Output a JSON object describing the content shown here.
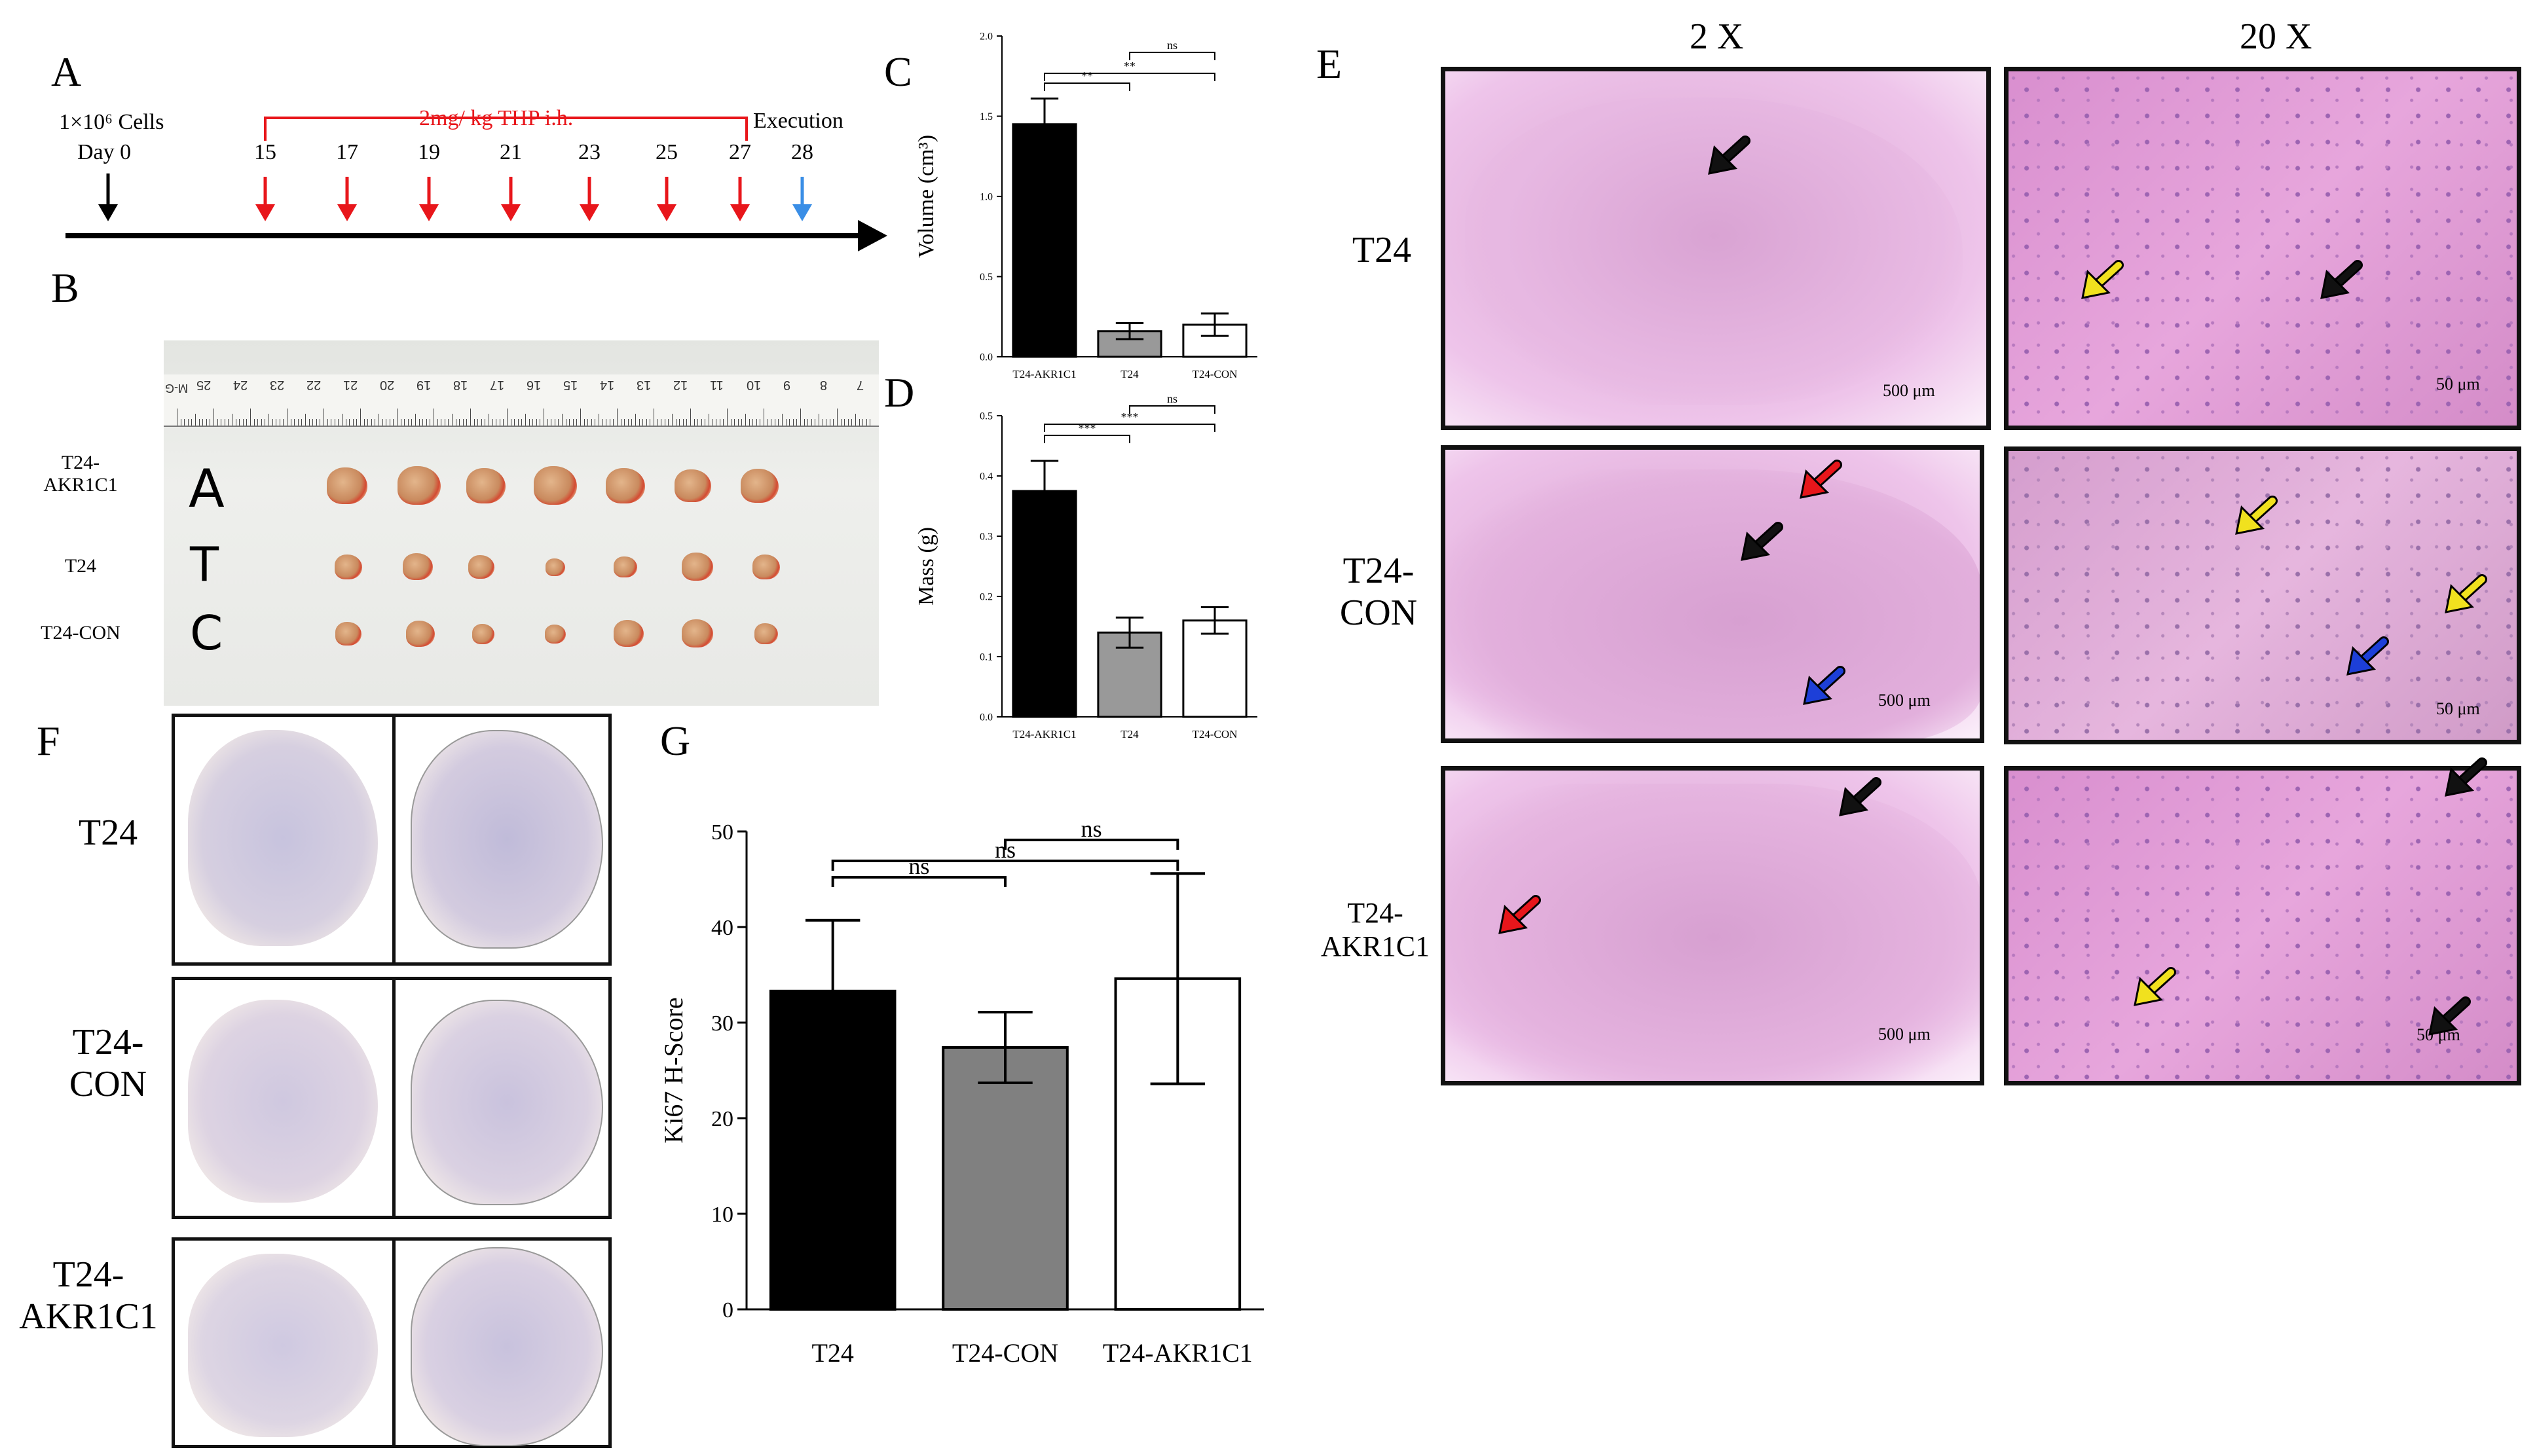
{
  "panel_letters": {
    "A": "A",
    "B": "B",
    "C": "C",
    "D": "D",
    "E": "E",
    "F": "F",
    "G": "G"
  },
  "timeline": {
    "cells_label": "1×10⁶ Cells",
    "day0_label": "Day 0",
    "treatment_label": "2mg/ kg THP i.h.",
    "execution_label": "Execution",
    "days": [
      "15",
      "17",
      "19",
      "21",
      "23",
      "25",
      "27",
      "28"
    ],
    "colors": {
      "start": "#000000",
      "treatment": "#e8161b",
      "execution": "#3a8ee6"
    }
  },
  "photo": {
    "row_labels": [
      "T24-\nAKR1C1",
      "T24",
      "T24-CON"
    ],
    "handwritten": [
      "A",
      "T",
      "C"
    ],
    "ruler_numbers": [
      "25",
      "24",
      "23",
      "22",
      "21",
      "20",
      "19",
      "18",
      "17",
      "16",
      "15",
      "14",
      "13",
      "12",
      "11",
      "10",
      "9",
      "8",
      "7"
    ],
    "ruler_mark": "M-G"
  },
  "he": {
    "col_labels": [
      "2 X",
      "20 X"
    ],
    "row_labels": [
      "T24",
      "T24-\nCON",
      "T24-\nAKR1C1"
    ],
    "scale_low": "500 μm",
    "scale_high": "50 μm",
    "arrow_colors": {
      "black": "#111111",
      "red": "#e8161b",
      "blue": "#1d3fd8",
      "yellow": "#f1e11e"
    }
  },
  "ihc": {
    "row_labels": [
      "T24",
      "T24-\nCON",
      "T24-\nAKR1C1"
    ]
  },
  "chart_data": [
    {
      "panel": "C",
      "type": "bar",
      "categories": [
        "T24-AKR1C1",
        "T24",
        "T24-CON"
      ],
      "values": [
        1.45,
        0.16,
        0.2
      ],
      "errors": [
        0.16,
        0.05,
        0.07
      ],
      "ylabel": "Volume (cm³)",
      "ylim": [
        0,
        2.0
      ],
      "yticks": [
        "0.0",
        "0.5",
        "1.0",
        "1.5",
        "2.0"
      ],
      "colors": [
        "#000000",
        "#999999",
        "#ffffff"
      ],
      "significance": [
        {
          "pair": [
            0,
            1
          ],
          "label": "**"
        },
        {
          "pair": [
            0,
            2
          ],
          "label": "**"
        },
        {
          "pair": [
            1,
            2
          ],
          "label": "ns"
        }
      ]
    },
    {
      "panel": "D",
      "type": "bar",
      "categories": [
        "T24-AKR1C1",
        "T24",
        "T24-CON"
      ],
      "values": [
        0.375,
        0.14,
        0.16
      ],
      "errors": [
        0.05,
        0.025,
        0.022
      ],
      "ylabel": "Mass (g)",
      "ylim": [
        0,
        0.5
      ],
      "yticks": [
        "0.0",
        "0.1",
        "0.2",
        "0.3",
        "0.4",
        "0.5"
      ],
      "colors": [
        "#000000",
        "#999999",
        "#ffffff"
      ],
      "significance": [
        {
          "pair": [
            0,
            1
          ],
          "label": "***"
        },
        {
          "pair": [
            0,
            2
          ],
          "label": "***"
        },
        {
          "pair": [
            1,
            2
          ],
          "label": "ns"
        }
      ]
    },
    {
      "panel": "G",
      "type": "bar",
      "categories": [
        "T24",
        "T24-CON",
        "T24-AKR1C1"
      ],
      "values": [
        33.3,
        27.4,
        34.6
      ],
      "errors": [
        7.4,
        3.7,
        11.0
      ],
      "ylabel": "Ki67 H-Score",
      "ylim": [
        0,
        50
      ],
      "yticks": [
        "0",
        "10",
        "20",
        "30",
        "40",
        "50"
      ],
      "colors": [
        "#000000",
        "#808080",
        "#ffffff"
      ],
      "significance": [
        {
          "pair": [
            0,
            1
          ],
          "label": "ns"
        },
        {
          "pair": [
            0,
            2
          ],
          "label": "ns"
        },
        {
          "pair": [
            1,
            2
          ],
          "label": "ns"
        }
      ]
    }
  ]
}
